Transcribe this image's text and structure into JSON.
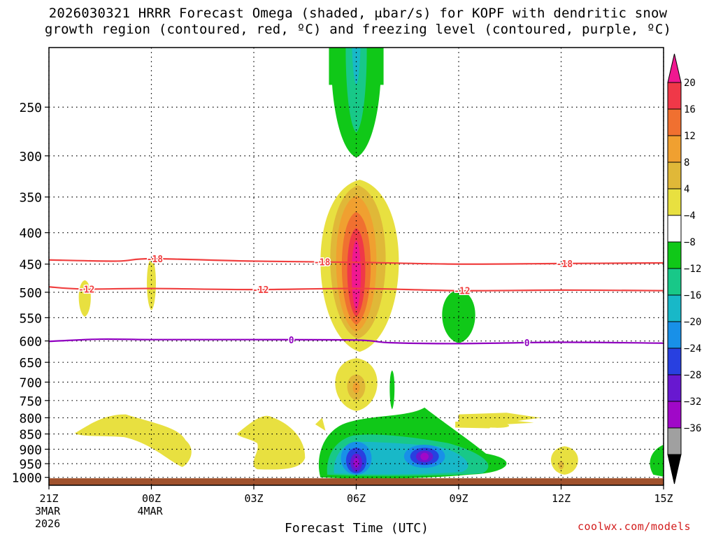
{
  "chart_data": {
    "type": "contour-timeheight",
    "title_line1": "2026030321 HRRR Forecast Omega (shaded, μbar/s) for KOPF with dendritic snow",
    "title_line2": "growth region (contoured, red, ºC) and freezing level (contoured, purple, ºC)",
    "xlabel": "Forecast Time (UTC)",
    "credit": "coolwx.com/models",
    "x_ticks": [
      {
        "hour": 0,
        "label": "21Z",
        "sub": [
          "3MAR",
          "2026"
        ]
      },
      {
        "hour": 3,
        "label": "00Z",
        "sub": [
          "4MAR"
        ]
      },
      {
        "hour": 6,
        "label": "03Z",
        "sub": []
      },
      {
        "hour": 9,
        "label": "06Z",
        "sub": []
      },
      {
        "hour": 12,
        "label": "09Z",
        "sub": []
      },
      {
        "hour": 15,
        "label": "12Z",
        "sub": []
      },
      {
        "hour": 18,
        "label": "15Z",
        "sub": []
      }
    ],
    "xlim": [
      0,
      18
    ],
    "y_levels": [
      250,
      300,
      350,
      400,
      450,
      500,
      550,
      600,
      650,
      700,
      750,
      800,
      850,
      900,
      950,
      1000
    ],
    "ylim_hPa": [
      200,
      1030
    ],
    "colorbar": {
      "labels": [
        "20",
        "16",
        "12",
        "8",
        "4",
        "−4",
        "−8",
        "−12",
        "−16",
        "−20",
        "−24",
        "−28",
        "−32",
        "−36"
      ],
      "colors": [
        "#f01890",
        "#f03848",
        "#f07030",
        "#f0a030",
        "#e0b838",
        "#e8e040",
        "#ffffff",
        "#10c818",
        "#18c888",
        "#18b8c8",
        "#1890e8",
        "#2840e0",
        "#6818d0",
        "#a008c8",
        "#a0a0a0",
        "#000000"
      ]
    },
    "dgz_contours": [
      {
        "value": -18,
        "label": "-18",
        "points": [
          [
            0,
            443
          ],
          [
            2,
            445
          ],
          [
            3,
            441
          ],
          [
            6,
            445
          ],
          [
            9,
            447
          ],
          [
            12,
            450
          ],
          [
            15,
            449
          ],
          [
            18,
            448
          ]
        ],
        "label_hours": [
          3.1,
          8.0,
          15.1
        ]
      },
      {
        "value": -12,
        "label": "-12",
        "points": [
          [
            0,
            490
          ],
          [
            1,
            494
          ],
          [
            3,
            493
          ],
          [
            6,
            495
          ],
          [
            9,
            493
          ],
          [
            12,
            497
          ],
          [
            15,
            496
          ],
          [
            18,
            497
          ]
        ],
        "label_hours": [
          1.1,
          6.2,
          12.1
        ]
      }
    ],
    "freezing_level": {
      "value": 0,
      "label": "0",
      "points": [
        [
          0,
          601
        ],
        [
          1.5,
          596
        ],
        [
          3,
          597
        ],
        [
          6,
          597
        ],
        [
          9,
          598
        ],
        [
          10,
          604
        ],
        [
          12,
          606
        ],
        [
          15,
          603
        ],
        [
          18,
          605
        ]
      ],
      "label_hours": [
        7.1,
        14.0
      ]
    },
    "omega_features": [
      {
        "kind": "upward",
        "center_hour": 9.0,
        "center_hPa": 460,
        "peak": 20
      },
      {
        "kind": "upward",
        "center_hour": 9.0,
        "center_hPa": 715,
        "peak": 8
      },
      {
        "kind": "downward",
        "center_hour": 9.0,
        "center_hPa": 230,
        "peak": -12
      },
      {
        "kind": "downward",
        "center_hour": 12.0,
        "center_hPa": 550,
        "peak": -8
      },
      {
        "kind": "downward",
        "center_hour": 9.0,
        "center_hPa": 940,
        "peak": -32
      },
      {
        "kind": "downward",
        "center_hour": 11.0,
        "center_hPa": 925,
        "peak": -32
      }
    ],
    "ground_color": "#a0522d"
  }
}
